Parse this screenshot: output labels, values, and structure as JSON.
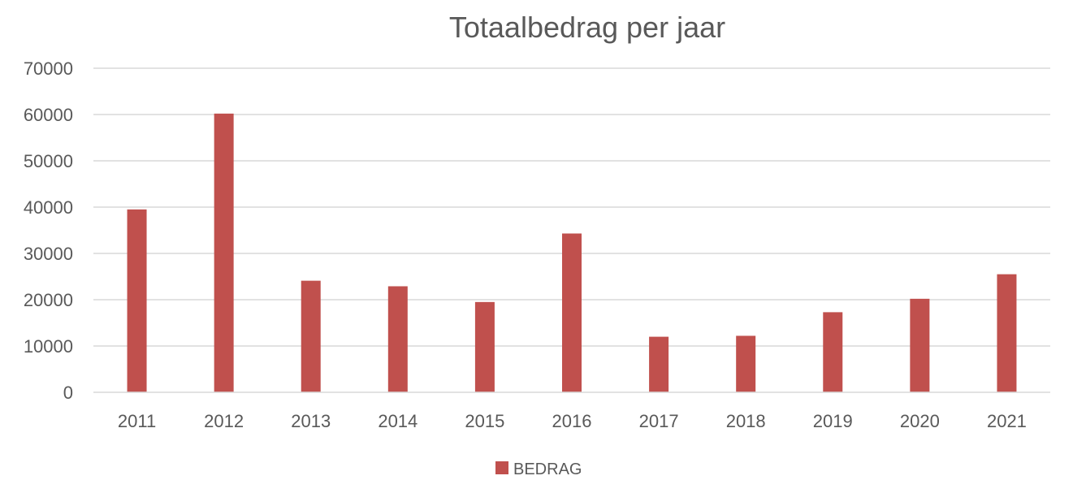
{
  "chart_data": {
    "type": "bar",
    "title": "Totaalbedrag per jaar",
    "xlabel": "",
    "ylabel": "",
    "categories": [
      "2011",
      "2012",
      "2013",
      "2014",
      "2015",
      "2016",
      "2017",
      "2018",
      "2019",
      "2020",
      "2021"
    ],
    "series": [
      {
        "name": "BEDRAG",
        "color": "#c0504d",
        "values": [
          39500,
          60200,
          24100,
          22900,
          19500,
          34300,
          12000,
          12200,
          17300,
          20200,
          25500
        ]
      }
    ],
    "ylim": [
      0,
      70000
    ],
    "yticks": [
      "0",
      "10000",
      "20000",
      "30000",
      "40000",
      "50000",
      "60000",
      "70000"
    ],
    "grid": true,
    "legend_position": "bottom"
  }
}
